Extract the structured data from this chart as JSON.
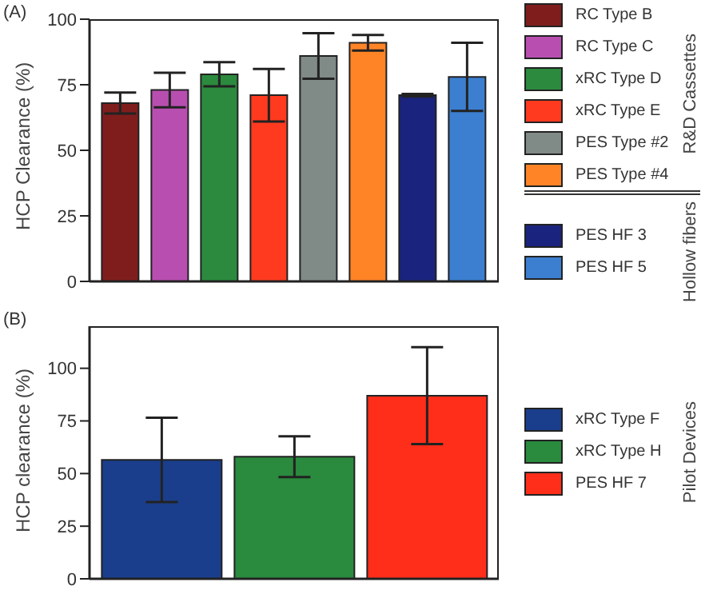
{
  "chart_data": [
    {
      "type": "bar",
      "categories": [
        null
      ],
      "ylabel": "HCP Clearance (%)",
      "ylim": [
        0,
        100
      ],
      "yticks": [
        0,
        25,
        50,
        75,
        100
      ],
      "grid": false,
      "legend": "right",
      "tick_labels": "y",
      "annotations": [
        "(A)",
        "R&D Cassettes",
        "Hollow fibers"
      ],
      "series": [
        {
          "name": "RC Type B",
          "color": "#7f1d1d",
          "values": [
            68
          ],
          "errors": [
            4
          ]
        },
        {
          "name": "RC Type C",
          "color": "#b84fb0",
          "values": [
            73
          ],
          "errors": [
            6.6
          ]
        },
        {
          "name": "xRC Type D",
          "color": "#2b8a3e",
          "values": [
            79
          ],
          "errors": [
            4.6
          ]
        },
        {
          "name": "xRC Type E",
          "color": "#ff3a1f",
          "values": [
            71
          ],
          "errors": [
            10
          ]
        },
        {
          "name": "PES Type #2",
          "color": "#808a86",
          "values": [
            86
          ],
          "errors": [
            8.7
          ]
        },
        {
          "name": "PES Type #4",
          "color": "#ff8426",
          "values": [
            91
          ],
          "errors": [
            3
          ]
        },
        {
          "name": "PES HF 3",
          "color": "#1a237e",
          "values": [
            71
          ],
          "errors": [
            0.5
          ]
        },
        {
          "name": "PES HF 5",
          "color": "#3c7fd0",
          "values": [
            78
          ],
          "errors": [
            13
          ]
        }
      ]
    },
    {
      "type": "bar",
      "categories": [
        null
      ],
      "ylabel": "HCP clearance (%)",
      "ylim": [
        0,
        120
      ],
      "yticks": [
        0,
        25,
        50,
        75,
        100
      ],
      "grid": false,
      "legend": "right",
      "tick_labels": "y",
      "annotations": [
        "(B)",
        "Pilot Devices"
      ],
      "series": [
        {
          "name": "xRC Type F",
          "color": "#1a3e8c",
          "values": [
            56.5
          ],
          "errors": [
            20
          ]
        },
        {
          "name": "xRC Type H",
          "color": "#2a8a3e",
          "values": [
            58
          ],
          "errors": [
            9.7
          ]
        },
        {
          "name": "PES HF  7",
          "color": "#ff2e1a",
          "values": [
            87
          ],
          "errors": [
            23
          ]
        }
      ]
    }
  ]
}
